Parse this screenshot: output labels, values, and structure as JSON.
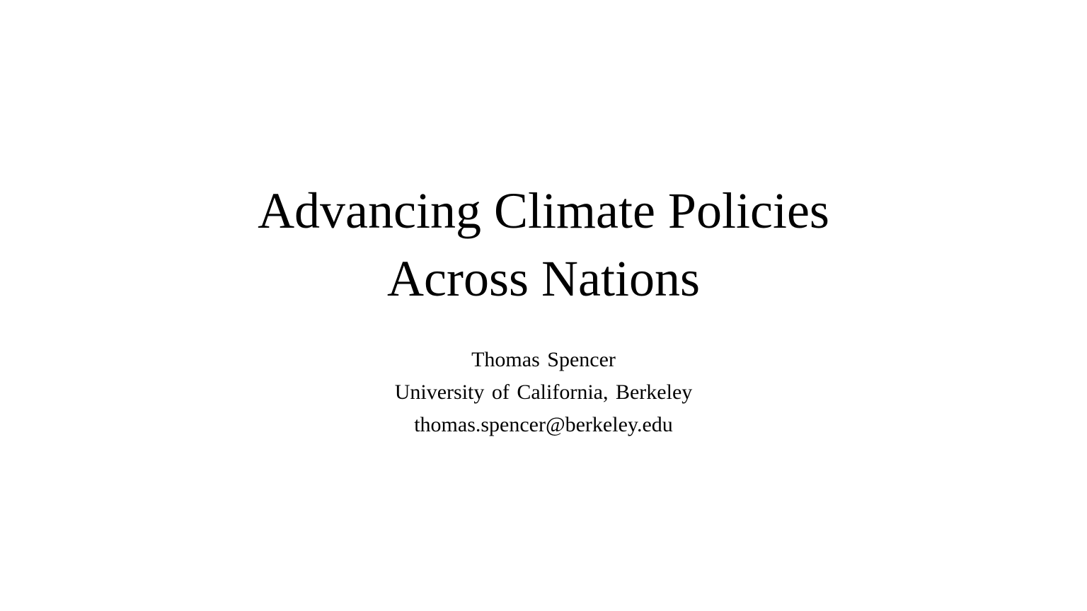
{
  "slide": {
    "title_lines": [
      "Advancing Climate Policies",
      "Across Nations"
    ],
    "author": "Thomas Spencer",
    "affiliation": "University of California, Berkeley",
    "email": "thomas.spencer@berkeley.edu"
  },
  "colors": {
    "background": "#ffffff",
    "text": "#000000"
  }
}
